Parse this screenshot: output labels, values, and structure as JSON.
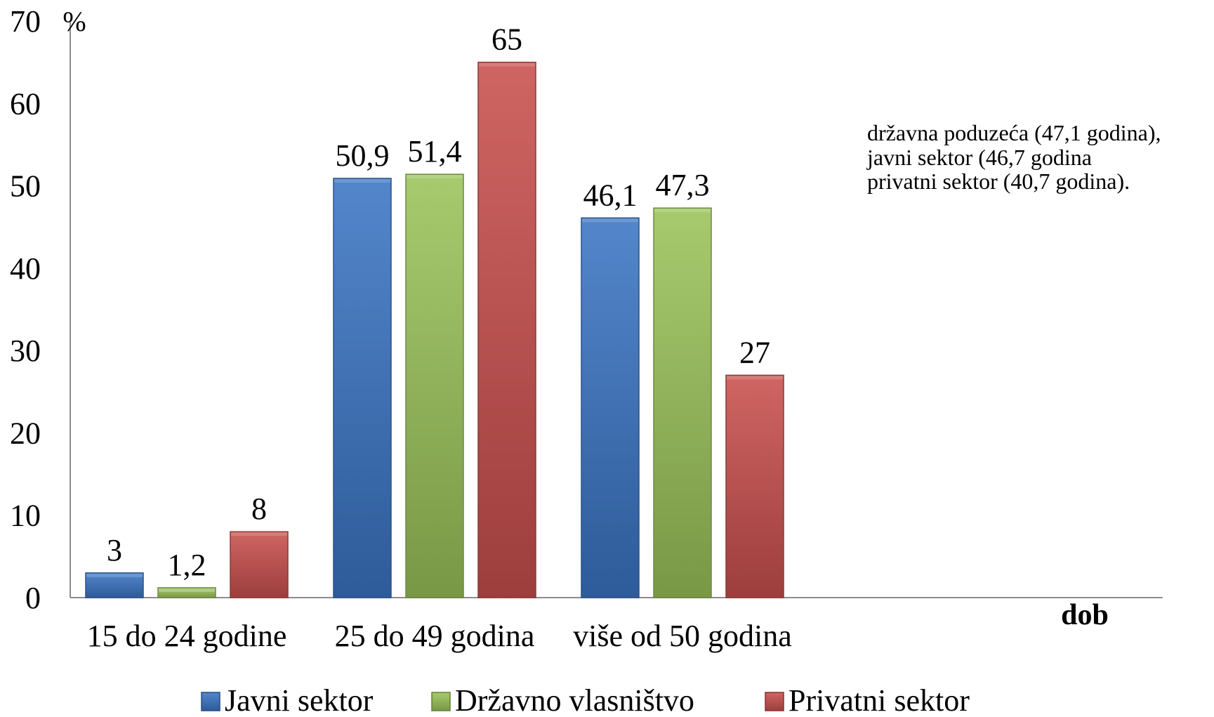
{
  "chart_data": {
    "type": "bar",
    "categories": [
      "15 do 24 godine",
      "25 do 49 godina",
      "više od 50 godina"
    ],
    "series": [
      {
        "name": "Javni sektor",
        "values": [
          3,
          50.9,
          46.1
        ],
        "value_labels": [
          "3",
          "50,9",
          "46,1"
        ],
        "color": "#3b75c4"
      },
      {
        "name": "Državno vlasništvo",
        "values": [
          1.2,
          51.4,
          47.3
        ],
        "value_labels": [
          "1,2",
          "51,4",
          "47,3"
        ],
        "color": "#9bc35a"
      },
      {
        "name": "Privatni sektor",
        "values": [
          8,
          65,
          27
        ],
        "value_labels": [
          "8",
          "65",
          "27"
        ],
        "color": "#c9504e"
      }
    ],
    "ylabel": "%",
    "xlabel": "dob",
    "ylim": [
      0,
      70
    ],
    "yticks": [
      "0",
      "10",
      "20",
      "30",
      "40",
      "50",
      "60",
      "70"
    ],
    "annotation": [
      "državna poduzeća (47,1 godina),",
      "javni sektor (46,7 godina",
      "privatni sektor (40,7 godina)."
    ],
    "legend_position": "bottom",
    "grid": false
  }
}
